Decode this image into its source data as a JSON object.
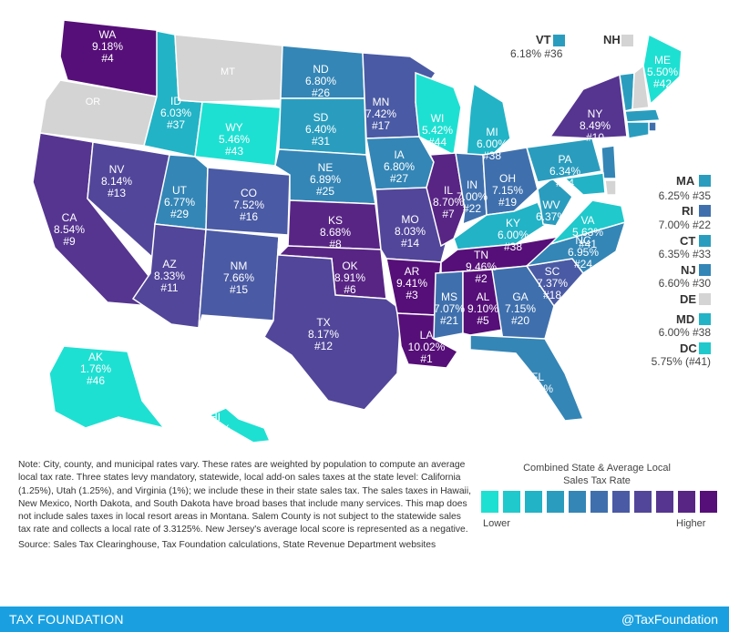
{
  "colors": {
    "scale": [
      "#1ee0d2",
      "#1fc9cc",
      "#22b3c6",
      "#2a9dbe",
      "#3486b6",
      "#3f70ad",
      "#4a5aa4",
      "#52469a",
      "#563590",
      "#582585",
      "#560f78"
    ],
    "no_tax": "#d4d4d4",
    "footer": "#1aa0e0"
  },
  "states": [
    {
      "id": "WA",
      "abbr": "WA",
      "rate": "9.18%",
      "rank": "#4",
      "level": 10
    },
    {
      "id": "OR",
      "abbr": "OR",
      "rate": "",
      "rank": "",
      "level": -1
    },
    {
      "id": "CA",
      "abbr": "CA",
      "rate": "8.54%",
      "rank": "#9",
      "level": 8
    },
    {
      "id": "NV",
      "abbr": "NV",
      "rate": "8.14%",
      "rank": "#13",
      "level": 7
    },
    {
      "id": "ID",
      "abbr": "ID",
      "rate": "6.03%",
      "rank": "#37",
      "level": 2
    },
    {
      "id": "MT",
      "abbr": "MT",
      "rate": "",
      "rank": "",
      "level": -1
    },
    {
      "id": "WY",
      "abbr": "WY",
      "rate": "5.46%",
      "rank": "#43",
      "level": 0
    },
    {
      "id": "UT",
      "abbr": "UT",
      "rate": "6.77%",
      "rank": "#29",
      "level": 4
    },
    {
      "id": "AZ",
      "abbr": "AZ",
      "rate": "8.33%",
      "rank": "#11",
      "level": 7
    },
    {
      "id": "CO",
      "abbr": "CO",
      "rate": "7.52%",
      "rank": "#16",
      "level": 6
    },
    {
      "id": "NM",
      "abbr": "NM",
      "rate": "7.66%",
      "rank": "#15",
      "level": 6
    },
    {
      "id": "ND",
      "abbr": "ND",
      "rate": "6.80%",
      "rank": "#26",
      "level": 4
    },
    {
      "id": "SD",
      "abbr": "SD",
      "rate": "6.40%",
      "rank": "#31",
      "level": 3
    },
    {
      "id": "NE",
      "abbr": "NE",
      "rate": "6.89%",
      "rank": "#25",
      "level": 4
    },
    {
      "id": "KS",
      "abbr": "KS",
      "rate": "8.68%",
      "rank": "#8",
      "level": 9
    },
    {
      "id": "OK",
      "abbr": "OK",
      "rate": "8.91%",
      "rank": "#6",
      "level": 9
    },
    {
      "id": "TX",
      "abbr": "TX",
      "rate": "8.17%",
      "rank": "#12",
      "level": 7
    },
    {
      "id": "MN",
      "abbr": "MN",
      "rate": "7.42%",
      "rank": "#17",
      "level": 6
    },
    {
      "id": "IA",
      "abbr": "IA",
      "rate": "6.80%",
      "rank": "#27",
      "level": 4
    },
    {
      "id": "MO",
      "abbr": "MO",
      "rate": "8.03%",
      "rank": "#14",
      "level": 7
    },
    {
      "id": "AR",
      "abbr": "AR",
      "rate": "9.41%",
      "rank": "#3",
      "level": 10
    },
    {
      "id": "LA",
      "abbr": "LA",
      "rate": "10.02%",
      "rank": "#1",
      "level": 10
    },
    {
      "id": "WI",
      "abbr": "WI",
      "rate": "5.42%",
      "rank": "#44",
      "level": 0
    },
    {
      "id": "IL",
      "abbr": "IL",
      "rate": "8.70%",
      "rank": "#7",
      "level": 9
    },
    {
      "id": "MI",
      "abbr": "MI",
      "rate": "6.00%",
      "rank": "#38",
      "level": 2
    },
    {
      "id": "IN",
      "abbr": "IN",
      "rate": "7.00%",
      "rank": "#22",
      "level": 5
    },
    {
      "id": "OH",
      "abbr": "OH",
      "rate": "7.15%",
      "rank": "#19",
      "level": 5
    },
    {
      "id": "KY",
      "abbr": "KY",
      "rate": "6.00%",
      "rank": "#38",
      "level": 2
    },
    {
      "id": "TN",
      "abbr": "TN",
      "rate": "9.46%",
      "rank": "#2",
      "level": 10
    },
    {
      "id": "MS",
      "abbr": "MS",
      "rate": "7.07%",
      "rank": "#21",
      "level": 5
    },
    {
      "id": "AL",
      "abbr": "AL",
      "rate": "9.10%",
      "rank": "#5",
      "level": 10
    },
    {
      "id": "GA",
      "abbr": "GA",
      "rate": "7.15%",
      "rank": "#20",
      "level": 5
    },
    {
      "id": "FL",
      "abbr": "FL",
      "rate": "6.80%",
      "rank": "#28",
      "level": 4
    },
    {
      "id": "SC",
      "abbr": "SC",
      "rate": "7.37%",
      "rank": "#18",
      "level": 6
    },
    {
      "id": "NC",
      "abbr": "NC",
      "rate": "6.95%",
      "rank": "#24",
      "level": 4
    },
    {
      "id": "VA",
      "abbr": "VA",
      "rate": "5.63%",
      "rank": "#41",
      "level": 1
    },
    {
      "id": "WV",
      "abbr": "WV",
      "rate": "6.37%",
      "rank": "#32",
      "level": 3
    },
    {
      "id": "PA",
      "abbr": "PA",
      "rate": "6.34%",
      "rank": "#34",
      "level": 3
    },
    {
      "id": "NY",
      "abbr": "NY",
      "rate": "8.49%",
      "rank": "#10",
      "level": 8
    },
    {
      "id": "ME",
      "abbr": "ME",
      "rate": "5.50%",
      "rank": "#42",
      "level": 0
    },
    {
      "id": "AK",
      "abbr": "AK",
      "rate": "1.76%",
      "rank": "#46",
      "level": 0
    },
    {
      "id": "HI",
      "abbr": "HI",
      "rate": "4.35%",
      "rank": "#45",
      "level": 0
    }
  ],
  "side_labels": [
    {
      "abbr": "VT",
      "value": "6.18% #36",
      "level": 3
    },
    {
      "abbr": "NH",
      "value": "",
      "level": -1
    },
    {
      "abbr": "MA",
      "value": "6.25% #35",
      "level": 3
    },
    {
      "abbr": "RI",
      "value": "7.00% #22",
      "level": 5
    },
    {
      "abbr": "CT",
      "value": "6.35% #33",
      "level": 3
    },
    {
      "abbr": "NJ",
      "value": "6.60% #30",
      "level": 4
    },
    {
      "abbr": "DE",
      "value": "",
      "level": -1
    },
    {
      "abbr": "MD",
      "value": "6.00% #38",
      "level": 2
    },
    {
      "abbr": "DC",
      "value": "5.75% (#41)",
      "level": 1
    }
  ],
  "note": "Note: City, county, and municipal rates vary. These rates are weighted by population to compute an average local tax rate. Three states levy mandatory, statewide, local add-on sales taxes at the state level: California (1.25%), Utah (1.25%), and Virginia (1%); we include these in their state sales tax. The sales taxes in Hawaii, New Mexico, North Dakota, and South Dakota have broad bases that include many services. This map does not include sales taxes in local resort areas in Montana. Salem County is not subject to the statewide sales tax rate and collects a local rate of 3.3125%. New Jersey's average local score is represented as a negative.",
  "source": "Source: Sales Tax Clearinghouse, Tax Foundation calculations, State Revenue Department websites",
  "legend": {
    "title_line1": "Combined State & Average Local",
    "title_line2": "Sales Tax Rate",
    "low": "Lower",
    "high": "Higher"
  },
  "footer": {
    "brand": "TAX FOUNDATION",
    "handle": "@TaxFoundation"
  }
}
